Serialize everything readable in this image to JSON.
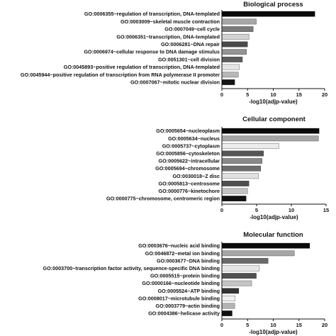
{
  "chart_data": [
    {
      "type": "bar",
      "orientation": "horizontal",
      "title": "Biological process",
      "xlabel": "-log10(adjp-value)",
      "xlim": [
        0,
        20
      ],
      "xticks": [
        0,
        5,
        10,
        15,
        20
      ],
      "xtick_labels": [
        "0",
        "5",
        "10",
        "15",
        "20"
      ],
      "categories": [
        "GO:0006355~regulation of transcription, DNA-templated",
        "GO:0003009~skeletal muscle contraction",
        "GO:0007049~cell cycle",
        "GO:0006351~transcription, DNA-templated",
        "GO:0006281~DNA repair",
        "GO:0006974~cellular response to DNA damage stimulus",
        "GO:0051301~cell division",
        "GO:0045893~positive regulation of transcription, DNA-templated",
        "GO:0045944~positive regulation of transcription from RNA polymerase II promoter",
        "GO:0007067~mitotic nuclear division"
      ],
      "values": [
        18.1,
        6.7,
        6.1,
        5.3,
        5.0,
        4.8,
        4.0,
        3.4,
        3.2,
        2.5
      ],
      "bar_colors": [
        "#0a0a0a",
        "#a6a6a6",
        "#7b7b7b",
        "#d2d2d2",
        "#4a4a4a",
        "#939393",
        "#5c5c5c",
        "#e4e4e4",
        "#b8b8b8",
        "#141414"
      ]
    },
    {
      "type": "bar",
      "orientation": "horizontal",
      "title": "Cellular component",
      "xlabel": "-log10(adjp-value)",
      "xlim": [
        0,
        15
      ],
      "xticks": [
        0,
        5,
        10,
        15
      ],
      "xtick_labels": [
        "0",
        "5",
        "10",
        "15"
      ],
      "categories": [
        "GO:0005654~nucleoplasm",
        "GO:0005634~nucleus",
        "GO:0005737~cytoplasm",
        "GO:0005856~cytoskeleton",
        "GO:0005622~intracellular",
        "GO:0005694~chromosome",
        "GO:0030018~Z disc",
        "GO:0005813~centrosome",
        "GO:0000776~kinetochore",
        "GO:0000775~chromosome, centromeric region"
      ],
      "values": [
        14.0,
        13.9,
        8.2,
        6.0,
        5.8,
        5.6,
        5.3,
        3.9,
        3.7,
        3.5
      ],
      "bar_colors": [
        "#0a0a0a",
        "#a6a6a6",
        "#ececec",
        "#555555",
        "#8a8a8a",
        "#6e6e6e",
        "#e0e0e0",
        "#4f4f4f",
        "#c2c2c2",
        "#111111"
      ]
    },
    {
      "type": "bar",
      "orientation": "horizontal",
      "title": "Molecular function",
      "xlabel": "-log10(adjp-value)",
      "xlim": [
        0,
        20
      ],
      "xticks": [
        0,
        5,
        10,
        15,
        20
      ],
      "xtick_labels": [
        "0",
        "5",
        "10",
        "15",
        "20"
      ],
      "categories": [
        "GO:0003676~nucleic acid binding",
        "GO:0046872~metal ion binding",
        "GO:0003677~DNA binding",
        "GO:0003700~transcription factor activity, sequence-specific DNA binding",
        "GO:0005515~protein binding",
        "GO:0000166~nucleotide binding",
        "GO:0005524~ATP binding",
        "GO:0008017~microtubule binding",
        "GO:0003779~actin binding",
        "GO:0004386~helicase activity"
      ],
      "values": [
        17.1,
        14.1,
        9.0,
        7.3,
        6.7,
        5.8,
        3.3,
        2.6,
        2.5,
        2.0
      ],
      "bar_colors": [
        "#0a0a0a",
        "#a6a6a6",
        "#6b6b6b",
        "#e6e6e6",
        "#515151",
        "#c4c4c4",
        "#333333",
        "#f0f0f0",
        "#b3b3b3",
        "#111111"
      ]
    }
  ]
}
